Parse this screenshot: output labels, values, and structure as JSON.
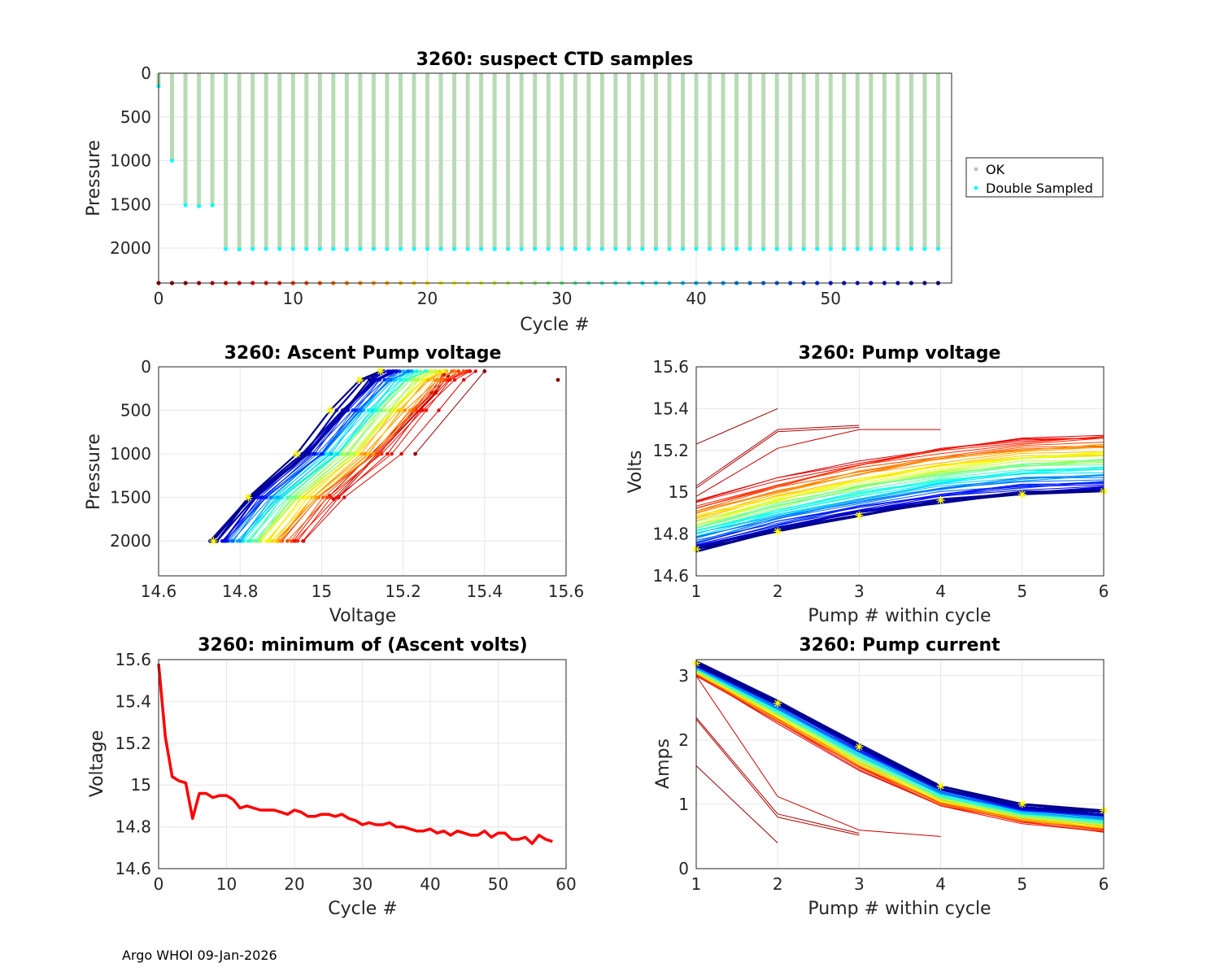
{
  "footer": "Argo WHOI 09-Jan-2026",
  "chart_data": [
    {
      "id": "suspect",
      "type": "scatter",
      "title": "3260: suspect CTD samples",
      "xlabel": "Cycle #",
      "ylabel": "Pressure",
      "xlim": [
        0,
        59
      ],
      "ylim": [
        0,
        2400
      ],
      "y_reversed": true,
      "xticks": [
        "0",
        "10",
        "20",
        "30",
        "40",
        "50"
      ],
      "yticks": [
        "0",
        "500",
        "1000",
        "1500",
        "2000"
      ],
      "legend": [
        "OK",
        "Double Sampled"
      ],
      "legend_colors": [
        "#bfbfbf",
        "#00ffff"
      ],
      "profile_color": "#b8dbb5",
      "double_sample_color": "#00ffff",
      "cycles": [
        0,
        1,
        2,
        3,
        4,
        5,
        6,
        7,
        8,
        9,
        10,
        11,
        12,
        13,
        14,
        15,
        16,
        17,
        18,
        19,
        20,
        21,
        22,
        23,
        24,
        25,
        26,
        27,
        28,
        29,
        30,
        31,
        32,
        33,
        34,
        35,
        36,
        37,
        38,
        39,
        40,
        41,
        42,
        43,
        44,
        45,
        46,
        47,
        48,
        49,
        50,
        51,
        52,
        53,
        54,
        55,
        56,
        57,
        58
      ],
      "max_pressure": [
        150,
        1000,
        1510,
        1520,
        1510,
        2010,
        2015,
        2010,
        2010,
        2010,
        2010,
        2010,
        2010,
        2010,
        2015,
        2010,
        2010,
        2010,
        2010,
        2010,
        2010,
        2010,
        2010,
        2010,
        2010,
        2010,
        2010,
        2010,
        2010,
        2010,
        2010,
        2010,
        2010,
        2010,
        2010,
        2010,
        2010,
        2010,
        2010,
        2010,
        2010,
        2010,
        2010,
        2010,
        2010,
        2010,
        2010,
        2010,
        2010,
        2010,
        2010,
        2010,
        2010,
        2010,
        2010,
        2010,
        2010,
        2010,
        2010
      ],
      "cycle_marker_pressure": 2400
    },
    {
      "id": "ascent",
      "type": "line",
      "title": "3260: Ascent Pump voltage",
      "xlabel": "Voltage",
      "ylabel": "Pressure",
      "xlim": [
        14.6,
        15.6
      ],
      "ylim": [
        0,
        2400
      ],
      "y_reversed": true,
      "xticks": [
        "14.6",
        "14.8",
        "15",
        "15.2",
        "15.4",
        "15.6"
      ],
      "yticks": [
        "0",
        "500",
        "1000",
        "1500",
        "2000"
      ],
      "pressures": [
        2000,
        1500,
        1000,
        500,
        150,
        50
      ],
      "early_cycles": [
        {
          "cycle": 0,
          "volts": [
            15.58
          ],
          "pressures": [
            150
          ]
        },
        {
          "cycle": 1,
          "volts": [
            15.23,
            15.4
          ],
          "pressures": [
            1000,
            50
          ]
        },
        {
          "cycle": 2,
          "volts": [
            15.04,
            15.28,
            15.31
          ],
          "pressures": [
            1500,
            300,
            100
          ]
        },
        {
          "cycle": 3,
          "volts": [
            15.03,
            15.28,
            15.3
          ],
          "pressures": [
            1520,
            290,
            80
          ]
        },
        {
          "cycle": 4,
          "volts": [
            15.02,
            15.27,
            15.3
          ],
          "pressures": [
            1480,
            300,
            60
          ]
        }
      ],
      "vmin_start": 14.96,
      "vmin_end": 14.73,
      "vstep": [
        0.09,
        0.22,
        0.31,
        0.38,
        0.42
      ],
      "first_cycle": 5,
      "last_cycle": 58
    },
    {
      "id": "pumpv",
      "type": "line",
      "title": "3260: Pump voltage",
      "xlabel": "Pump # within cycle",
      "ylabel": "Volts",
      "xlim": [
        1,
        6
      ],
      "ylim": [
        14.6,
        15.6
      ],
      "xticks": [
        "1",
        "2",
        "3",
        "4",
        "5",
        "6"
      ],
      "yticks": [
        "14.6",
        "14.8",
        "15",
        "15.2",
        "15.4",
        "15.6"
      ],
      "early_cycles": [
        {
          "cycle": 1,
          "volts": [
            15.23,
            15.4
          ]
        },
        {
          "cycle": 2,
          "volts": [
            15.03,
            15.3,
            15.32
          ]
        },
        {
          "cycle": 3,
          "volts": [
            15.02,
            15.29,
            15.31
          ]
        },
        {
          "cycle": 4,
          "volts": [
            14.98,
            15.21,
            15.3,
            15.3
          ]
        }
      ],
      "start": [
        14.96,
        14.72
      ],
      "end": [
        15.28,
        15.0
      ],
      "first_cycle": 5,
      "last_cycle": 58
    },
    {
      "id": "minv",
      "type": "line",
      "title": "3260: minimum of (Ascent volts)",
      "xlabel": "Cycle #",
      "ylabel": "Voltage",
      "xlim": [
        0,
        60
      ],
      "ylim": [
        14.6,
        15.6
      ],
      "xticks": [
        "0",
        "10",
        "20",
        "30",
        "40",
        "50",
        "60"
      ],
      "yticks": [
        "14.6",
        "14.8",
        "15",
        "15.2",
        "15.4",
        "15.6"
      ],
      "color": "#ff0000",
      "x": [
        0,
        1,
        2,
        3,
        4,
        5,
        6,
        7,
        8,
        9,
        10,
        11,
        12,
        13,
        14,
        15,
        16,
        17,
        18,
        19,
        20,
        21,
        22,
        23,
        24,
        25,
        26,
        27,
        28,
        29,
        30,
        31,
        32,
        33,
        34,
        35,
        36,
        37,
        38,
        39,
        40,
        41,
        42,
        43,
        44,
        45,
        46,
        47,
        48,
        49,
        50,
        51,
        52,
        53,
        54,
        55,
        56,
        57,
        58
      ],
      "y": [
        15.58,
        15.23,
        15.04,
        15.02,
        15.01,
        14.84,
        14.96,
        14.96,
        14.94,
        14.95,
        14.95,
        14.93,
        14.89,
        14.9,
        14.89,
        14.88,
        14.88,
        14.88,
        14.87,
        14.86,
        14.88,
        14.87,
        14.85,
        14.85,
        14.86,
        14.86,
        14.85,
        14.86,
        14.84,
        14.83,
        14.81,
        14.82,
        14.81,
        14.81,
        14.82,
        14.8,
        14.8,
        14.79,
        14.78,
        14.78,
        14.79,
        14.77,
        14.78,
        14.76,
        14.78,
        14.77,
        14.76,
        14.76,
        14.78,
        14.75,
        14.77,
        14.77,
        14.74,
        14.74,
        14.75,
        14.72,
        14.76,
        14.74,
        14.73
      ]
    },
    {
      "id": "pumpi",
      "type": "line",
      "title": "3260: Pump current",
      "xlabel": "Pump # within cycle",
      "ylabel": "Amps",
      "xlim": [
        1,
        6
      ],
      "ylim": [
        0,
        3.25
      ],
      "xticks": [
        "1",
        "2",
        "3",
        "4",
        "5",
        "6"
      ],
      "yticks": [
        "0",
        "1",
        "2",
        "3"
      ],
      "early_cycles": [
        {
          "cycle": 1,
          "amps": [
            1.6,
            0.4
          ]
        },
        {
          "cycle": 2,
          "amps": [
            2.35,
            0.85,
            0.55
          ]
        },
        {
          "cycle": 3,
          "amps": [
            2.32,
            0.8,
            0.52
          ]
        },
        {
          "cycle": 4,
          "amps": [
            3.0,
            1.12,
            0.6,
            0.5
          ]
        }
      ],
      "late": [
        3.2,
        2.6,
        1.92,
        1.28,
        0.98,
        0.88
      ],
      "early": [
        3.02,
        2.28,
        1.55,
        0.98,
        0.72,
        0.58
      ],
      "first_cycle": 5,
      "last_cycle": 58
    }
  ]
}
